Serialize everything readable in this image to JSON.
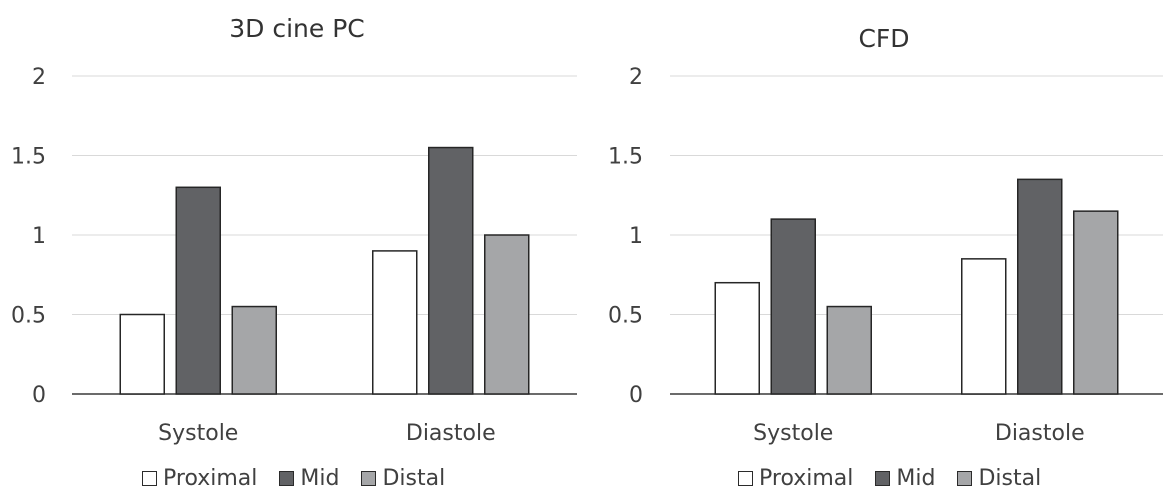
{
  "chart_data": [
    {
      "type": "bar",
      "title": "3D cine PC",
      "categories": [
        "Systole",
        "Diastole"
      ],
      "series": [
        {
          "name": "Proximal",
          "values": [
            0.5,
            0.9
          ]
        },
        {
          "name": "Mid",
          "values": [
            1.3,
            1.55
          ]
        },
        {
          "name": "Distal",
          "values": [
            0.55,
            1.0
          ]
        }
      ],
      "ylim": [
        0,
        2
      ],
      "yticks": [
        "0",
        "0.5",
        "1",
        "1.5",
        "2"
      ],
      "grid": true,
      "legend": "bottom",
      "colors": [
        "#ffffff",
        "#616265",
        "#a5a6a8"
      ]
    },
    {
      "type": "bar",
      "title": "CFD",
      "categories": [
        "Systole",
        "Diastole"
      ],
      "series": [
        {
          "name": "Proximal",
          "values": [
            0.7,
            0.85
          ]
        },
        {
          "name": "Mid",
          "values": [
            1.1,
            1.35
          ]
        },
        {
          "name": "Distal",
          "values": [
            0.55,
            1.15
          ]
        }
      ],
      "ylim": [
        0,
        2
      ],
      "yticks": [
        "0",
        "0.5",
        "1",
        "1.5",
        "2"
      ],
      "grid": true,
      "legend": "bottom",
      "colors": [
        "#ffffff",
        "#616265",
        "#a5a6a8"
      ]
    }
  ]
}
